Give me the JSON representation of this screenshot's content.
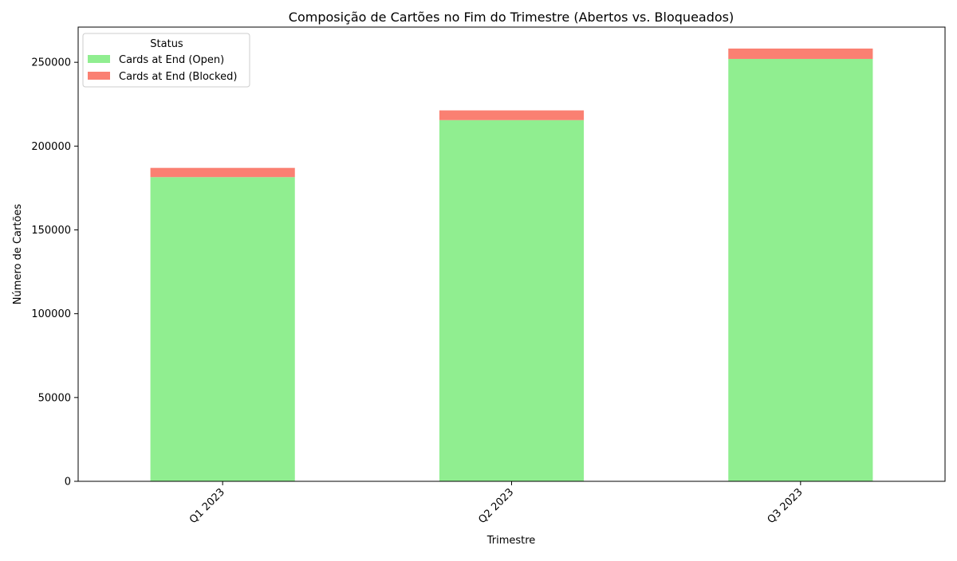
{
  "chart_data": {
    "type": "bar",
    "stacked": true,
    "title": "Composição de Cartões no Fim do Trimestre (Abertos vs. Bloqueados)",
    "xlabel": "Trimestre",
    "ylabel": "Número de Cartões",
    "categories": [
      "Q1 2023",
      "Q2 2023",
      "Q3 2023"
    ],
    "series": [
      {
        "name": "Cards at End (Open)",
        "values": [
          181500,
          215500,
          252000
        ],
        "color": "#90ee90"
      },
      {
        "name": "Cards at End (Blocked)",
        "values": [
          5500,
          5800,
          6200
        ],
        "color": "#fa8072"
      }
    ],
    "ylim": [
      0,
      271000
    ],
    "yticks": [
      0,
      50000,
      100000,
      150000,
      200000,
      250000
    ],
    "legend": {
      "title": "Status",
      "position": "top-left"
    },
    "grid": false
  }
}
